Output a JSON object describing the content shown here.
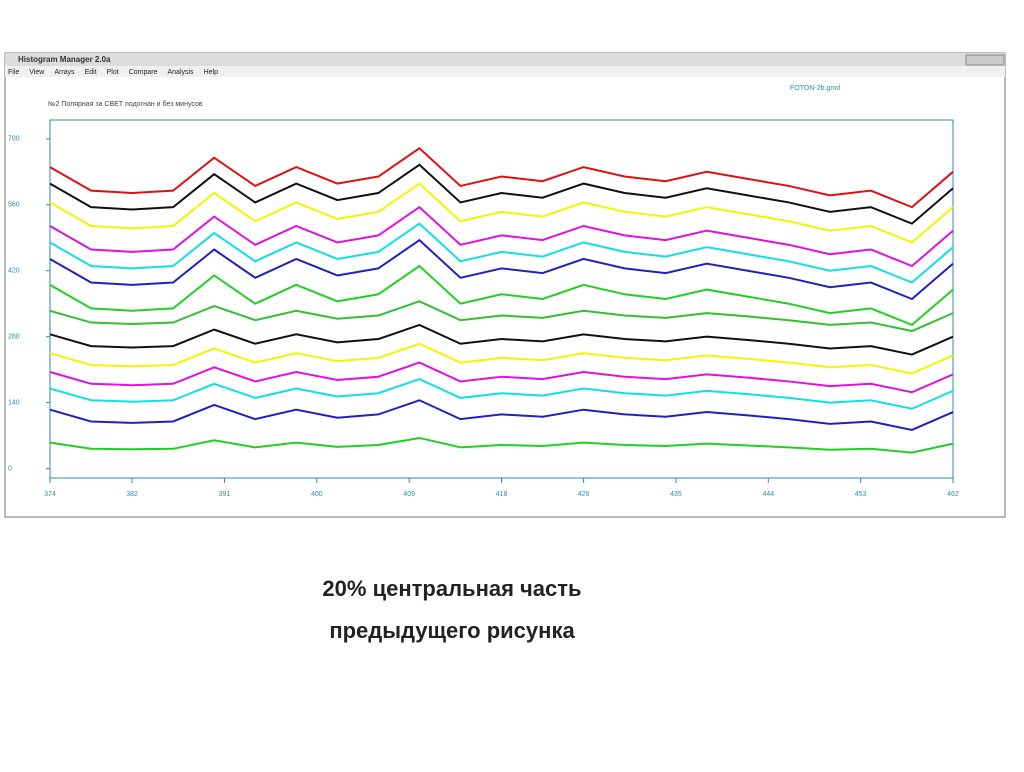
{
  "window": {
    "title": "Histogram Manager 2.0a",
    "menu": [
      "File",
      "View",
      "Arrays",
      "Edit",
      "Plot",
      "Compare",
      "Analysis",
      "Help"
    ]
  },
  "chart_data": {
    "type": "line",
    "title": "№2 Полярная за СВЕТ подогнан и без минусов",
    "file": "FOTON-2b.gmd",
    "x": [
      374,
      378,
      382,
      386,
      390,
      394,
      398,
      402,
      406,
      410,
      414,
      418,
      422,
      426,
      430,
      434,
      438,
      442,
      446,
      450,
      454,
      458,
      462
    ],
    "xlim": [
      374,
      462
    ],
    "xticks": [
      374,
      382,
      391,
      400,
      409,
      418,
      426,
      435,
      444,
      453,
      462
    ],
    "ylim": [
      -20,
      740
    ],
    "yticks": [
      0,
      140,
      280,
      420,
      560,
      700
    ],
    "series": [
      {
        "color": "#e01010",
        "values": [
          640,
          590,
          585,
          590,
          660,
          600,
          640,
          605,
          620,
          680,
          600,
          620,
          610,
          640,
          620,
          610,
          630,
          615,
          600,
          580,
          590,
          555,
          630
        ]
      },
      {
        "color": "#111111",
        "values": [
          605,
          555,
          550,
          555,
          625,
          565,
          605,
          570,
          585,
          645,
          565,
          585,
          575,
          605,
          585,
          575,
          595,
          580,
          565,
          545,
          555,
          520,
          595
        ]
      },
      {
        "color": "#f4f400",
        "values": [
          565,
          515,
          510,
          515,
          585,
          525,
          565,
          530,
          545,
          605,
          525,
          545,
          535,
          565,
          545,
          535,
          555,
          540,
          525,
          505,
          515,
          480,
          555
        ]
      },
      {
        "color": "#e010e0",
        "values": [
          515,
          465,
          460,
          465,
          535,
          475,
          515,
          480,
          495,
          555,
          475,
          495,
          485,
          515,
          495,
          485,
          505,
          490,
          475,
          455,
          465,
          430,
          505
        ]
      },
      {
        "color": "#10e0e0",
        "values": [
          480,
          430,
          425,
          430,
          500,
          440,
          480,
          445,
          460,
          520,
          440,
          460,
          450,
          480,
          460,
          450,
          470,
          455,
          440,
          420,
          430,
          395,
          470
        ]
      },
      {
        "color": "#2020c0",
        "values": [
          445,
          395,
          390,
          395,
          465,
          405,
          445,
          410,
          425,
          485,
          405,
          425,
          415,
          445,
          425,
          415,
          435,
          420,
          405,
          385,
          395,
          360,
          435
        ]
      },
      {
        "color": "#20d020",
        "values": [
          390,
          340,
          335,
          340,
          410,
          350,
          390,
          355,
          370,
          430,
          350,
          370,
          360,
          390,
          370,
          360,
          380,
          365,
          350,
          330,
          340,
          305,
          380
        ]
      },
      {
        "color": "#30c030",
        "values": [
          335,
          310,
          307,
          310,
          345,
          315,
          335,
          318,
          325,
          355,
          315,
          325,
          320,
          335,
          325,
          320,
          330,
          323,
          315,
          305,
          310,
          292,
          330
        ]
      },
      {
        "color": "#111111",
        "values": [
          285,
          260,
          257,
          260,
          295,
          265,
          285,
          268,
          275,
          305,
          265,
          275,
          270,
          285,
          275,
          270,
          280,
          273,
          265,
          255,
          260,
          242,
          280
        ]
      },
      {
        "color": "#f4f400",
        "values": [
          245,
          220,
          217,
          220,
          255,
          225,
          245,
          228,
          235,
          265,
          225,
          235,
          230,
          245,
          235,
          230,
          240,
          233,
          225,
          215,
          220,
          202,
          240
        ]
      },
      {
        "color": "#e010e0",
        "values": [
          205,
          180,
          177,
          180,
          215,
          185,
          205,
          188,
          195,
          225,
          185,
          195,
          190,
          205,
          195,
          190,
          200,
          193,
          185,
          175,
          180,
          162,
          200
        ]
      },
      {
        "color": "#10e0e0",
        "values": [
          170,
          145,
          142,
          145,
          180,
          150,
          170,
          153,
          160,
          190,
          150,
          160,
          155,
          170,
          160,
          155,
          165,
          158,
          150,
          140,
          145,
          127,
          165
        ]
      },
      {
        "color": "#2020c0",
        "values": [
          125,
          100,
          97,
          100,
          135,
          105,
          125,
          108,
          115,
          145,
          105,
          115,
          110,
          125,
          115,
          110,
          120,
          113,
          105,
          95,
          100,
          82,
          120
        ]
      },
      {
        "color": "#20d020",
        "values": [
          55,
          42,
          41,
          42,
          60,
          45,
          55,
          46,
          50,
          65,
          45,
          50,
          48,
          55,
          50,
          48,
          53,
          49,
          45,
          40,
          42,
          34,
          53
        ]
      }
    ]
  },
  "caption": [
    "20% центральная часть",
    "предыдущего рисунка"
  ]
}
